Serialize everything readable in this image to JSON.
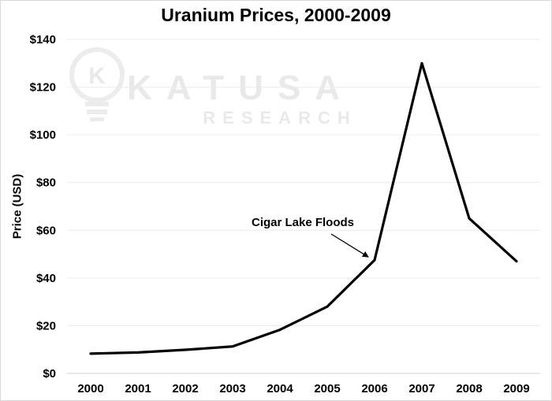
{
  "chart_data": {
    "type": "line",
    "title": "Uranium Prices, 2000-2009",
    "xlabel": "",
    "ylabel": "Price (USD)",
    "categories": [
      "2000",
      "2001",
      "2002",
      "2003",
      "2004",
      "2005",
      "2006",
      "2007",
      "2008",
      "2009"
    ],
    "series": [
      {
        "values": [
          8.3,
          8.8,
          9.9,
          11.3,
          18.3,
          28.0,
          47.5,
          130.0,
          65.0,
          47.0
        ]
      }
    ],
    "ylim": [
      0,
      140
    ],
    "yticks": [
      0,
      20,
      40,
      60,
      80,
      100,
      120,
      140
    ],
    "ytick_labels": [
      "$0",
      "$20",
      "$40",
      "$60",
      "$80",
      "$100",
      "$120",
      "$140"
    ],
    "grid": true,
    "line_color": "#000000",
    "annotations": [
      {
        "text": "Cigar Lake Floods",
        "target_category": "2006",
        "target_value": 47.5
      }
    ]
  },
  "watermark": {
    "logo": "lightbulb-k-logo",
    "line1": "KATUSA",
    "line2": "RESEARCH"
  }
}
